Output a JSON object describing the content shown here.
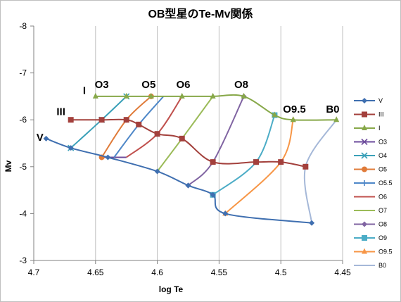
{
  "chart_data": {
    "type": "line",
    "title": "OB型星のTe-Mv関係",
    "xlabel": "log Te",
    "ylabel": "Mv",
    "xlim": [
      4.7,
      4.45
    ],
    "ylim": [
      -3,
      -8
    ],
    "x_reversed": true,
    "y_reversed": true,
    "grid": "vertical",
    "legend_position": "right",
    "x_ticks": [
      "4.7",
      "4.65",
      "4.6",
      "4.55",
      "4.5",
      "4.45"
    ],
    "y_ticks": [
      "-8",
      "-7",
      "-6",
      "-5",
      "-4",
      "-3"
    ],
    "series": [
      {
        "name": "V",
        "color": "#3f6fb0",
        "marker": "diamond",
        "points": [
          [
            4.69,
            -5.6
          ],
          [
            4.67,
            -5.4
          ],
          [
            4.64,
            -5.2
          ],
          [
            4.6,
            -4.9
          ],
          [
            4.575,
            -4.6
          ],
          [
            4.555,
            -4.4
          ],
          [
            4.545,
            -4.0
          ],
          [
            4.475,
            -3.8
          ]
        ]
      },
      {
        "name": "III",
        "color": "#a3403c",
        "marker": "square",
        "points": [
          [
            4.67,
            -6.0
          ],
          [
            4.645,
            -6.0
          ],
          [
            4.625,
            -6.0
          ],
          [
            4.615,
            -5.9
          ],
          [
            4.6,
            -5.7
          ],
          [
            4.58,
            -5.6
          ],
          [
            4.555,
            -5.1
          ],
          [
            4.52,
            -5.1
          ],
          [
            4.5,
            -5.1
          ],
          [
            4.48,
            -5.0
          ]
        ]
      },
      {
        "name": "I",
        "color": "#87a849",
        "marker": "triangle",
        "points": [
          [
            4.65,
            -6.5
          ],
          [
            4.625,
            -6.5
          ],
          [
            4.605,
            -6.5
          ],
          [
            4.58,
            -6.5
          ],
          [
            4.555,
            -6.5
          ],
          [
            4.53,
            -6.5
          ],
          [
            4.505,
            -6.1
          ],
          [
            4.49,
            -6.0
          ],
          [
            4.455,
            -6.0
          ]
        ]
      },
      {
        "name": "O3",
        "color": "#6e4c9c",
        "marker": "x",
        "points": [
          [
            4.645,
            -5.2
          ],
          [
            4.635,
            -5.2
          ],
          [
            4.625,
            -5.2
          ]
        ]
      },
      {
        "name": "O4",
        "color": "#3aa0b8",
        "marker": "x",
        "points": [
          [
            4.67,
            -5.4
          ],
          [
            4.645,
            -6.0
          ],
          [
            4.625,
            -6.5
          ]
        ]
      },
      {
        "name": "O5",
        "color": "#e07b39",
        "marker": "circle",
        "points": [
          [
            4.645,
            -5.2
          ],
          [
            4.625,
            -6.0
          ],
          [
            4.605,
            -6.5
          ]
        ]
      },
      {
        "name": "O5.5",
        "color": "#4e87c8",
        "marker": "plus",
        "points": [
          [
            4.635,
            -5.2
          ],
          [
            4.615,
            -5.9
          ],
          [
            4.595,
            -6.5
          ]
        ]
      },
      {
        "name": "O6",
        "color": "#c0504d",
        "marker": "dash",
        "points": [
          [
            4.625,
            -5.2
          ],
          [
            4.6,
            -5.7
          ],
          [
            4.58,
            -6.5
          ]
        ]
      },
      {
        "name": "O7",
        "color": "#9bbb59",
        "marker": "dash",
        "points": [
          [
            4.6,
            -4.9
          ],
          [
            4.58,
            -5.6
          ],
          [
            4.555,
            -6.5
          ]
        ]
      },
      {
        "name": "O8",
        "color": "#8064a2",
        "marker": "diamond",
        "points": [
          [
            4.575,
            -4.6
          ],
          [
            4.555,
            -5.1
          ],
          [
            4.53,
            -6.5
          ]
        ]
      },
      {
        "name": "O9",
        "color": "#4bacc6",
        "marker": "square",
        "points": [
          [
            4.555,
            -4.4
          ],
          [
            4.52,
            -5.1
          ],
          [
            4.505,
            -6.1
          ]
        ]
      },
      {
        "name": "O9.5",
        "color": "#f79646",
        "marker": "triangle",
        "points": [
          [
            4.545,
            -4.0
          ],
          [
            4.5,
            -5.1
          ],
          [
            4.49,
            -6.0
          ]
        ]
      },
      {
        "name": "B0",
        "color": "#a5b8d8",
        "marker": "dash",
        "points": [
          [
            4.475,
            -3.8
          ],
          [
            4.48,
            -5.0
          ],
          [
            4.455,
            -6.0
          ]
        ]
      }
    ],
    "annotations": [
      {
        "text": "V",
        "x": 4.695,
        "y": -5.55
      },
      {
        "text": "III",
        "x": 4.678,
        "y": -6.1
      },
      {
        "text": "I",
        "x": 4.659,
        "y": -6.55
      },
      {
        "text": "O3",
        "x": 4.645,
        "y": -6.68
      },
      {
        "text": "O5",
        "x": 4.607,
        "y": -6.68
      },
      {
        "text": "O6",
        "x": 4.579,
        "y": -6.68
      },
      {
        "text": "O8",
        "x": 4.532,
        "y": -6.68
      },
      {
        "text": "O9.5",
        "x": 4.489,
        "y": -6.15
      },
      {
        "text": "B0",
        "x": 4.458,
        "y": -6.15
      }
    ]
  }
}
